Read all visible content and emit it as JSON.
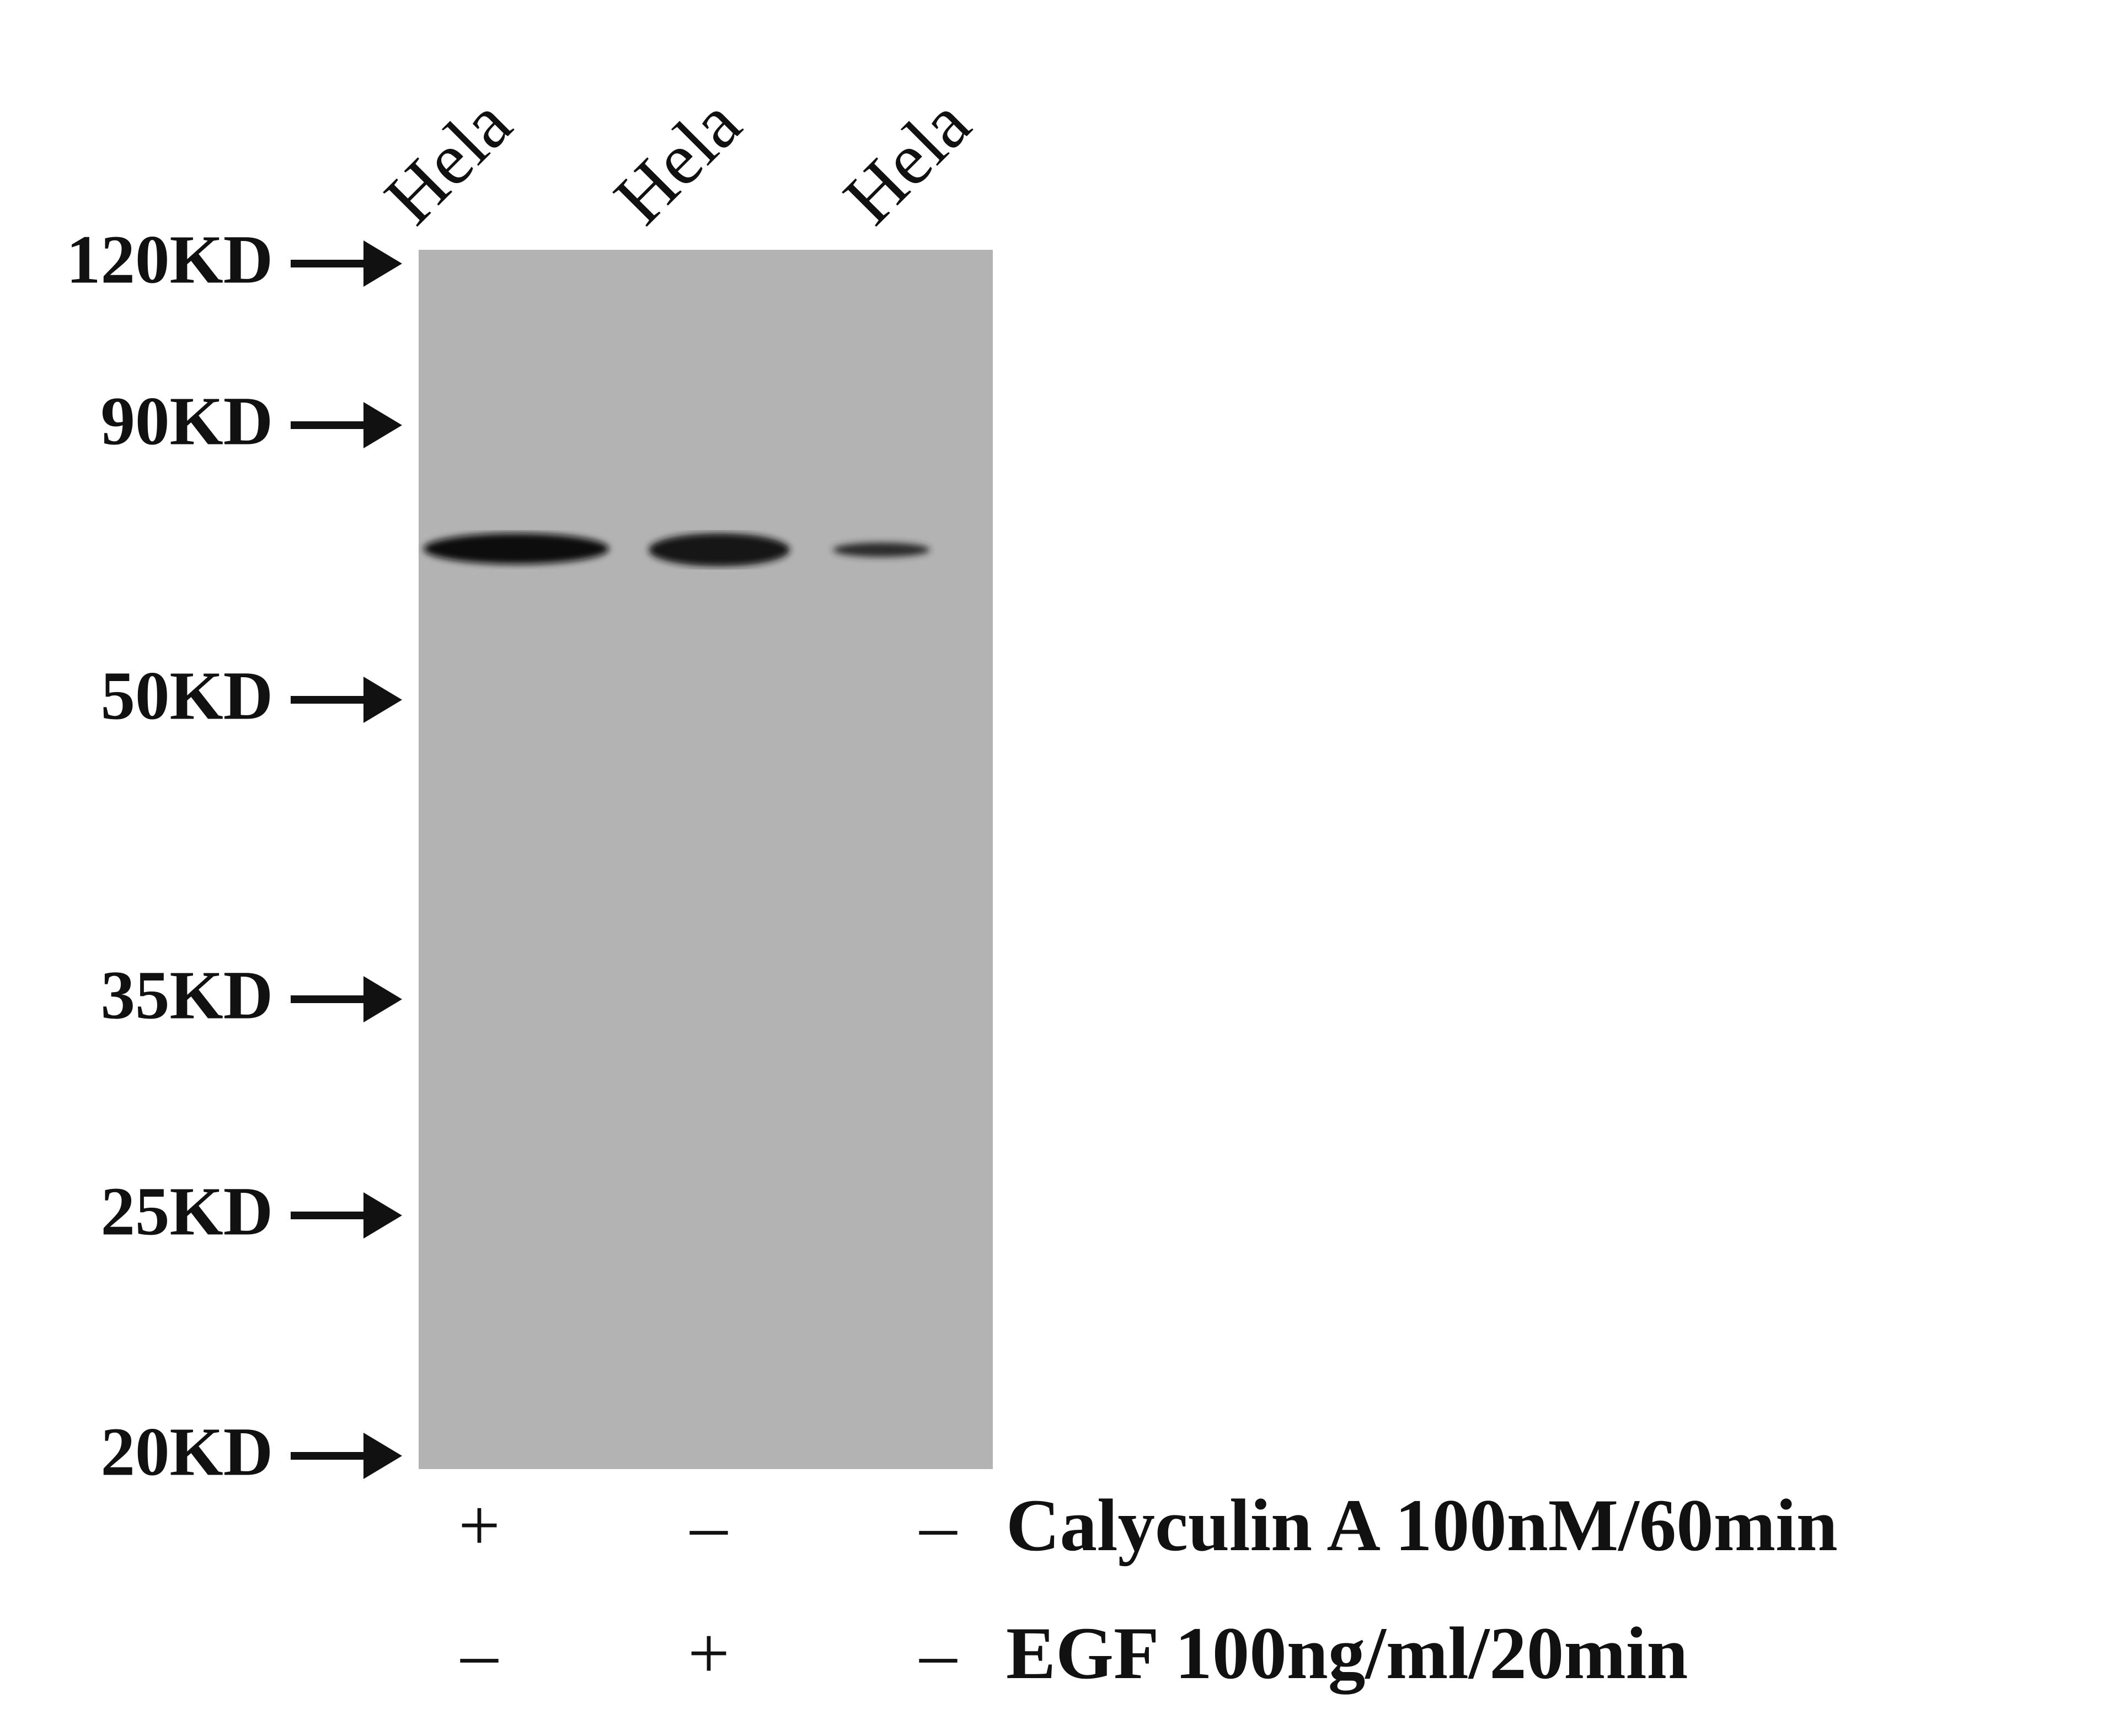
{
  "lanes": [
    "Hela",
    "Hela",
    "Hela"
  ],
  "markers": [
    "120KD",
    "90KD",
    "50KD",
    "35KD",
    "25KD",
    "20KD"
  ],
  "treatments": [
    {
      "signs": [
        "+",
        "–",
        "–"
      ],
      "label": "Calyculin A 100nM/60min"
    },
    {
      "signs": [
        "–",
        "+",
        "–"
      ],
      "label": "EGF 100ng/ml/20min"
    }
  ]
}
